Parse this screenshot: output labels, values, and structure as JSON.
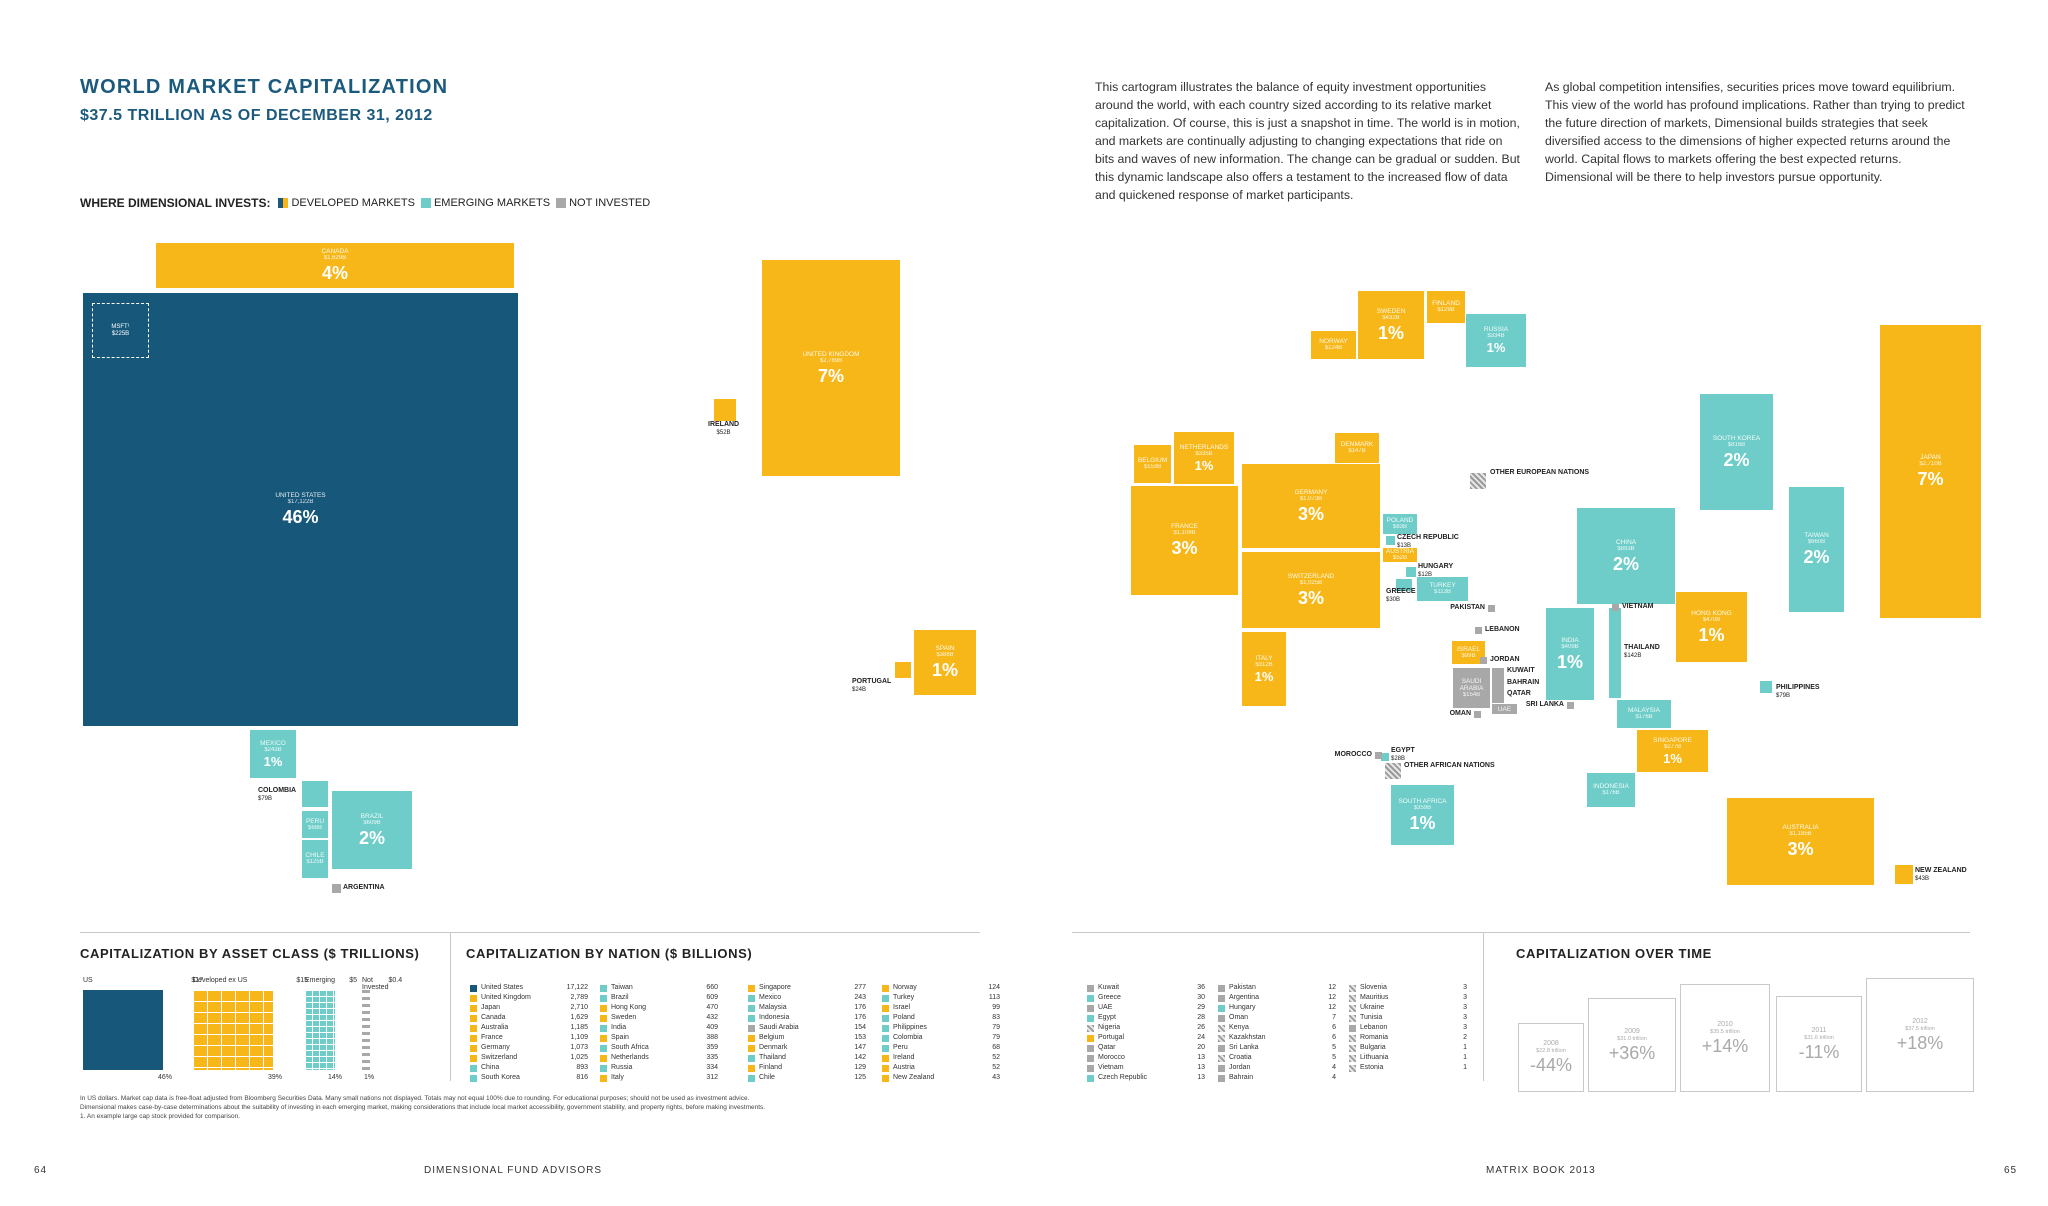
{
  "header": {
    "title": "WORLD MARKET CAPITALIZATION",
    "subtitle": "$37.5 TRILLION AS OF DECEMBER 31, 2012"
  },
  "paragraphs": [
    "This cartogram illustrates the balance of equity investment opportunities around the world, with each country sized according to its relative market capitalization. Of course, this is just a snapshot in time. The world is in motion, and markets are continually adjusting to changing expectations that ride on bits and waves of new information. The change can be gradual or sudden. But this dynamic landscape also offers a testament to the increased flow of data and quickened response of market participants.",
    "As global competition intensifies, securities prices move toward equilibrium. This view of the world has profound implications. Rather than trying to predict the future direction of markets, Dimensional builds strategies that seek diversified access to the dimensions of higher expected returns around the world. Capital flows to markets offering the best expected returns. Dimensional will be there to help investors pursue opportunity."
  ],
  "legend": {
    "title": "WHERE DIMENSIONAL INVESTS:",
    "items": [
      {
        "label": "DEVELOPED MARKETS",
        "color": "#1b5a7d"
      },
      {
        "label": "EMERGING MARKETS",
        "color": "#6ecdc8"
      },
      {
        "label": "NOT INVESTED",
        "color": "#a8a8a8"
      }
    ]
  },
  "colors": {
    "us": "#17577a",
    "developed": "#f7b718",
    "emerging": "#6ecdc8",
    "not_invested": "#a8a8a8",
    "accent": "#1b5a7d"
  },
  "map": {
    "msft": {
      "label": "MSFT¹",
      "value": "$225B"
    },
    "countries": [
      {
        "id": "canada",
        "name": "CANADA",
        "value": "$1,629B",
        "pct": "4%",
        "cls": "d"
      },
      {
        "id": "us",
        "name": "UNITED STATES",
        "value": "$17,122B",
        "pct": "46%",
        "cls": "us"
      },
      {
        "id": "uk",
        "name": "UNITED KINGDOM",
        "value": "$2,789B",
        "pct": "7%",
        "cls": "d"
      },
      {
        "id": "ireland",
        "name": "IRELAND",
        "value": "$52B",
        "pct": "",
        "cls": "d",
        "ext": true
      },
      {
        "id": "spain",
        "name": "SPAIN",
        "value": "$388B",
        "pct": "1%",
        "cls": "d"
      },
      {
        "id": "portugal",
        "name": "PORTUGAL",
        "value": "$24B",
        "pct": "",
        "cls": "d",
        "ext": true
      },
      {
        "id": "mexico",
        "name": "MEXICO",
        "value": "$243B",
        "pct": "1%",
        "cls": "e"
      },
      {
        "id": "colombia",
        "name": "COLOMBIA",
        "value": "$79B",
        "pct": "",
        "cls": "e",
        "ext": true
      },
      {
        "id": "peru",
        "name": "PERU",
        "value": "$68B",
        "pct": "",
        "cls": "e"
      },
      {
        "id": "chile",
        "name": "CHILE",
        "value": "$125B",
        "pct": "",
        "cls": "e"
      },
      {
        "id": "brazil",
        "name": "BRAZIL",
        "value": "$609B",
        "pct": "2%",
        "cls": "e"
      },
      {
        "id": "argentina",
        "name": "ARGENTINA",
        "value": "",
        "pct": "",
        "cls": "g",
        "ext": true
      },
      {
        "id": "sweden",
        "name": "SWEDEN",
        "value": "$432B",
        "pct": "1%",
        "cls": "d"
      },
      {
        "id": "finland",
        "name": "FINLAND",
        "value": "$129B",
        "pct": "",
        "cls": "d"
      },
      {
        "id": "norway",
        "name": "NORWAY",
        "value": "$124B",
        "pct": "",
        "cls": "d"
      },
      {
        "id": "russia",
        "name": "RUSSIA",
        "value": "$334B",
        "pct": "1%",
        "cls": "e"
      },
      {
        "id": "belgium",
        "name": "BELGIUM",
        "value": "$153B",
        "pct": "",
        "cls": "d"
      },
      {
        "id": "netherlands",
        "name": "NETHERLANDS",
        "value": "$335B",
        "pct": "1%",
        "cls": "d"
      },
      {
        "id": "denmark",
        "name": "DENMARK",
        "value": "$147B",
        "pct": "",
        "cls": "d"
      },
      {
        "id": "france",
        "name": "FRANCE",
        "value": "$1,109B",
        "pct": "3%",
        "cls": "d"
      },
      {
        "id": "germany",
        "name": "GERMANY",
        "value": "$1,073B",
        "pct": "3%",
        "cls": "d"
      },
      {
        "id": "switzerland",
        "name": "SWITZERLAND",
        "value": "$1,025B",
        "pct": "3%",
        "cls": "d"
      },
      {
        "id": "italy",
        "name": "ITALY",
        "value": "$312B",
        "pct": "1%",
        "cls": "d"
      },
      {
        "id": "poland",
        "name": "POLAND",
        "value": "$83B",
        "pct": "",
        "cls": "e"
      },
      {
        "id": "czech",
        "name": "CZECH REPUBLIC",
        "value": "$13B",
        "pct": "",
        "cls": "e",
        "ext": true
      },
      {
        "id": "austria",
        "name": "AUSTRIA",
        "value": "$52B",
        "pct": "",
        "cls": "d"
      },
      {
        "id": "hungary",
        "name": "HUNGARY",
        "value": "$12B",
        "pct": "",
        "cls": "e",
        "ext": true
      },
      {
        "id": "greece",
        "name": "GREECE",
        "value": "$30B",
        "pct": "",
        "cls": "e",
        "ext": true
      },
      {
        "id": "turkey",
        "name": "TURKEY",
        "value": "$113B",
        "pct": "",
        "cls": "e"
      },
      {
        "id": "other_eu",
        "name": "OTHER EUROPEAN NATIONS",
        "value": "",
        "pct": "",
        "cls": "h",
        "ext": true
      },
      {
        "id": "israel",
        "name": "ISRAEL",
        "value": "$99B",
        "pct": "",
        "cls": "d"
      },
      {
        "id": "saudi",
        "name": "SAUDI ARABIA",
        "value": "$154B",
        "pct": "",
        "cls": "g"
      },
      {
        "id": "uae",
        "name": "UAE",
        "value": "",
        "pct": "",
        "cls": "g"
      },
      {
        "id": "egypt",
        "name": "EGYPT",
        "value": "$28B",
        "pct": "",
        "cls": "e",
        "ext": true
      },
      {
        "id": "south_africa",
        "name": "SOUTH AFRICA",
        "value": "$359B",
        "pct": "1%",
        "cls": "e"
      },
      {
        "id": "china",
        "name": "CHINA",
        "value": "$893B",
        "pct": "2%",
        "cls": "e"
      },
      {
        "id": "india",
        "name": "INDIA",
        "value": "$409B",
        "pct": "1%",
        "cls": "e"
      },
      {
        "id": "south_korea",
        "name": "SOUTH KOREA",
        "value": "$816B",
        "pct": "2%",
        "cls": "e"
      },
      {
        "id": "japan",
        "name": "JAPAN",
        "value": "$2,710B",
        "pct": "7%",
        "cls": "d"
      },
      {
        "id": "taiwan",
        "name": "TAIWAN",
        "value": "$660B",
        "pct": "2%",
        "cls": "e"
      },
      {
        "id": "hong_kong",
        "name": "HONG KONG",
        "value": "$470B",
        "pct": "1%",
        "cls": "d"
      },
      {
        "id": "thailand",
        "name": "THAILAND",
        "value": "$142B",
        "pct": "",
        "cls": "e",
        "ext": true
      },
      {
        "id": "malaysia",
        "name": "MALAYSIA",
        "value": "$176B",
        "pct": "",
        "cls": "e"
      },
      {
        "id": "singapore",
        "name": "SINGAPORE",
        "value": "$277B",
        "pct": "1%",
        "cls": "d"
      },
      {
        "id": "indonesia",
        "name": "INDONESIA",
        "value": "$176B",
        "pct": "",
        "cls": "e"
      },
      {
        "id": "philippines",
        "name": "PHILIPPINES",
        "value": "$79B",
        "pct": "",
        "cls": "e",
        "ext": true
      },
      {
        "id": "australia",
        "name": "AUSTRALIA",
        "value": "$1,185B",
        "pct": "3%",
        "cls": "d"
      },
      {
        "id": "new_zealand",
        "name": "NEW ZEALAND",
        "value": "$43B",
        "pct": "",
        "cls": "d",
        "ext": true
      }
    ],
    "small_labels": [
      "PAKISTAN",
      "LEBANON",
      "JORDAN",
      "KUWAIT",
      "BAHRAIN",
      "QATAR",
      "OMAN",
      "SRI LANKA",
      "VIETNAM",
      "MOROCCO",
      "OTHER AFRICAN NATIONS"
    ]
  },
  "asset_class": {
    "heading": "CAPITALIZATION BY ASSET CLASS ($ TRILLIONS)",
    "groups": [
      {
        "label": "US",
        "value": "$17",
        "share": "46%"
      },
      {
        "label": "Developed ex US",
        "value": "$15",
        "share": "39%"
      },
      {
        "label": "Emerging",
        "value": "$5",
        "share": "14%"
      },
      {
        "label": "Not Invested",
        "value": "$0.4",
        "share": "1%"
      }
    ]
  },
  "by_nation": {
    "heading": "CAPITALIZATION BY NATION ($ BILLIONS)",
    "columns": [
      [
        [
          "United States",
          "17,122",
          "us"
        ],
        [
          "United Kingdom",
          "2,789",
          "d"
        ],
        [
          "Japan",
          "2,710",
          "d"
        ],
        [
          "Canada",
          "1,629",
          "d"
        ],
        [
          "Australia",
          "1,185",
          "d"
        ],
        [
          "France",
          "1,109",
          "d"
        ],
        [
          "Germany",
          "1,073",
          "d"
        ],
        [
          "Switzerland",
          "1,025",
          "d"
        ],
        [
          "China",
          "893",
          "e"
        ],
        [
          "South Korea",
          "816",
          "e"
        ]
      ],
      [
        [
          "Taiwan",
          "660",
          "e"
        ],
        [
          "Brazil",
          "609",
          "e"
        ],
        [
          "Hong Kong",
          "470",
          "d"
        ],
        [
          "Sweden",
          "432",
          "d"
        ],
        [
          "India",
          "409",
          "e"
        ],
        [
          "Spain",
          "388",
          "d"
        ],
        [
          "South Africa",
          "359",
          "e"
        ],
        [
          "Netherlands",
          "335",
          "d"
        ],
        [
          "Russia",
          "334",
          "e"
        ],
        [
          "Italy",
          "312",
          "d"
        ]
      ],
      [
        [
          "Singapore",
          "277",
          "d"
        ],
        [
          "Mexico",
          "243",
          "e"
        ],
        [
          "Malaysia",
          "176",
          "e"
        ],
        [
          "Indonesia",
          "176",
          "e"
        ],
        [
          "Saudi Arabia",
          "154",
          "g"
        ],
        [
          "Belgium",
          "153",
          "d"
        ],
        [
          "Denmark",
          "147",
          "d"
        ],
        [
          "Thailand",
          "142",
          "e"
        ],
        [
          "Finland",
          "129",
          "d"
        ],
        [
          "Chile",
          "125",
          "e"
        ]
      ],
      [
        [
          "Norway",
          "124",
          "d"
        ],
        [
          "Turkey",
          "113",
          "e"
        ],
        [
          "Israel",
          "99",
          "d"
        ],
        [
          "Poland",
          "83",
          "e"
        ],
        [
          "Philippines",
          "79",
          "e"
        ],
        [
          "Colombia",
          "79",
          "e"
        ],
        [
          "Peru",
          "68",
          "e"
        ],
        [
          "Ireland",
          "52",
          "d"
        ],
        [
          "Austria",
          "52",
          "d"
        ],
        [
          "New Zealand",
          "43",
          "d"
        ]
      ],
      [
        [
          "Kuwait",
          "36",
          "g"
        ],
        [
          "Greece",
          "30",
          "e"
        ],
        [
          "UAE",
          "29",
          "g"
        ],
        [
          "Egypt",
          "28",
          "e"
        ],
        [
          "Nigeria",
          "26",
          "h"
        ],
        [
          "Portugal",
          "24",
          "d"
        ],
        [
          "Qatar",
          "20",
          "g"
        ],
        [
          "Morocco",
          "13",
          "g"
        ],
        [
          "Vietnam",
          "13",
          "g"
        ],
        [
          "Czech Republic",
          "13",
          "e"
        ]
      ],
      [
        [
          "Pakistan",
          "12",
          "g"
        ],
        [
          "Argentina",
          "12",
          "g"
        ],
        [
          "Hungary",
          "12",
          "e"
        ],
        [
          "Oman",
          "7",
          "g"
        ],
        [
          "Kenya",
          "6",
          "h"
        ],
        [
          "Kazakhstan",
          "6",
          "h"
        ],
        [
          "Sri Lanka",
          "5",
          "g"
        ],
        [
          "Croatia",
          "5",
          "h"
        ],
        [
          "Jordan",
          "4",
          "g"
        ],
        [
          "Bahrain",
          "4",
          "g"
        ]
      ],
      [
        [
          "Slovenia",
          "3",
          "h"
        ],
        [
          "Mauritius",
          "3",
          "h"
        ],
        [
          "Ukraine",
          "3",
          "h"
        ],
        [
          "Tunisia",
          "3",
          "h"
        ],
        [
          "Lebanon",
          "3",
          "g"
        ],
        [
          "Romania",
          "2",
          "h"
        ],
        [
          "Bulgaria",
          "1",
          "h"
        ],
        [
          "Lithuania",
          "1",
          "h"
        ],
        [
          "Estonia",
          "1",
          "h"
        ]
      ]
    ]
  },
  "over_time": {
    "heading": "CAPITALIZATION OVER TIME",
    "years": [
      {
        "year": "2008",
        "total": "$22.8 trillion",
        "change": "-44%"
      },
      {
        "year": "2009",
        "total": "$31.0 trillion",
        "change": "+36%"
      },
      {
        "year": "2010",
        "total": "$35.5 trillion",
        "change": "+14%"
      },
      {
        "year": "2011",
        "total": "$31.6 trillion",
        "change": "-11%"
      },
      {
        "year": "2012",
        "total": "$37.5 trillion",
        "change": "+18%"
      }
    ]
  },
  "footnotes": [
    "In US dollars. Market cap data is free-float adjusted from Bloomberg Securities Data. Many small nations not displayed. Totals may not equal 100% due to rounding. For educational purposes; should not be used as investment advice.",
    "Dimensional makes case-by-case determinations about the suitability of investing in each emerging market, making considerations that include local market accessibility, government stability, and property rights, before making investments.",
    "1. An example large cap stock provided for comparison."
  ],
  "page_footer": {
    "left_num": "64",
    "left_text": "DIMENSIONAL FUND ADVISORS",
    "right_text": "MATRIX BOOK 2013",
    "right_num": "65"
  },
  "chart_data": {
    "type": "cartogram",
    "title": "WORLD MARKET CAPITALIZATION",
    "subtitle": "$37.5 TRILLION AS OF DECEMBER 31, 2012",
    "unit": "$ billions",
    "categories": [
      "United States",
      "United Kingdom",
      "Japan",
      "Canada",
      "Australia",
      "France",
      "Germany",
      "Switzerland",
      "China",
      "South Korea",
      "Taiwan",
      "Brazil",
      "Hong Kong",
      "Sweden",
      "India",
      "Spain",
      "South Africa",
      "Netherlands",
      "Russia",
      "Italy",
      "Singapore",
      "Mexico",
      "Malaysia",
      "Indonesia",
      "Saudi Arabia",
      "Belgium",
      "Denmark",
      "Thailand",
      "Finland",
      "Chile",
      "Norway",
      "Turkey",
      "Israel",
      "Poland",
      "Philippines",
      "Colombia",
      "Peru",
      "Ireland",
      "Austria",
      "New Zealand"
    ],
    "values": [
      17122,
      2789,
      2710,
      1629,
      1185,
      1109,
      1073,
      1025,
      893,
      816,
      660,
      609,
      470,
      432,
      409,
      388,
      359,
      335,
      334,
      312,
      277,
      243,
      176,
      176,
      154,
      153,
      147,
      142,
      129,
      125,
      124,
      113,
      99,
      83,
      79,
      79,
      68,
      52,
      52,
      43
    ],
    "series": [
      {
        "name": "Capitalization over time",
        "x": [
          "2008",
          "2009",
          "2010",
          "2011",
          "2012"
        ],
        "values": [
          22.8,
          31.0,
          35.5,
          31.6,
          37.5
        ],
        "change": [
          "-44%",
          "+36%",
          "+14%",
          "-11%",
          "+18%"
        ]
      }
    ]
  }
}
